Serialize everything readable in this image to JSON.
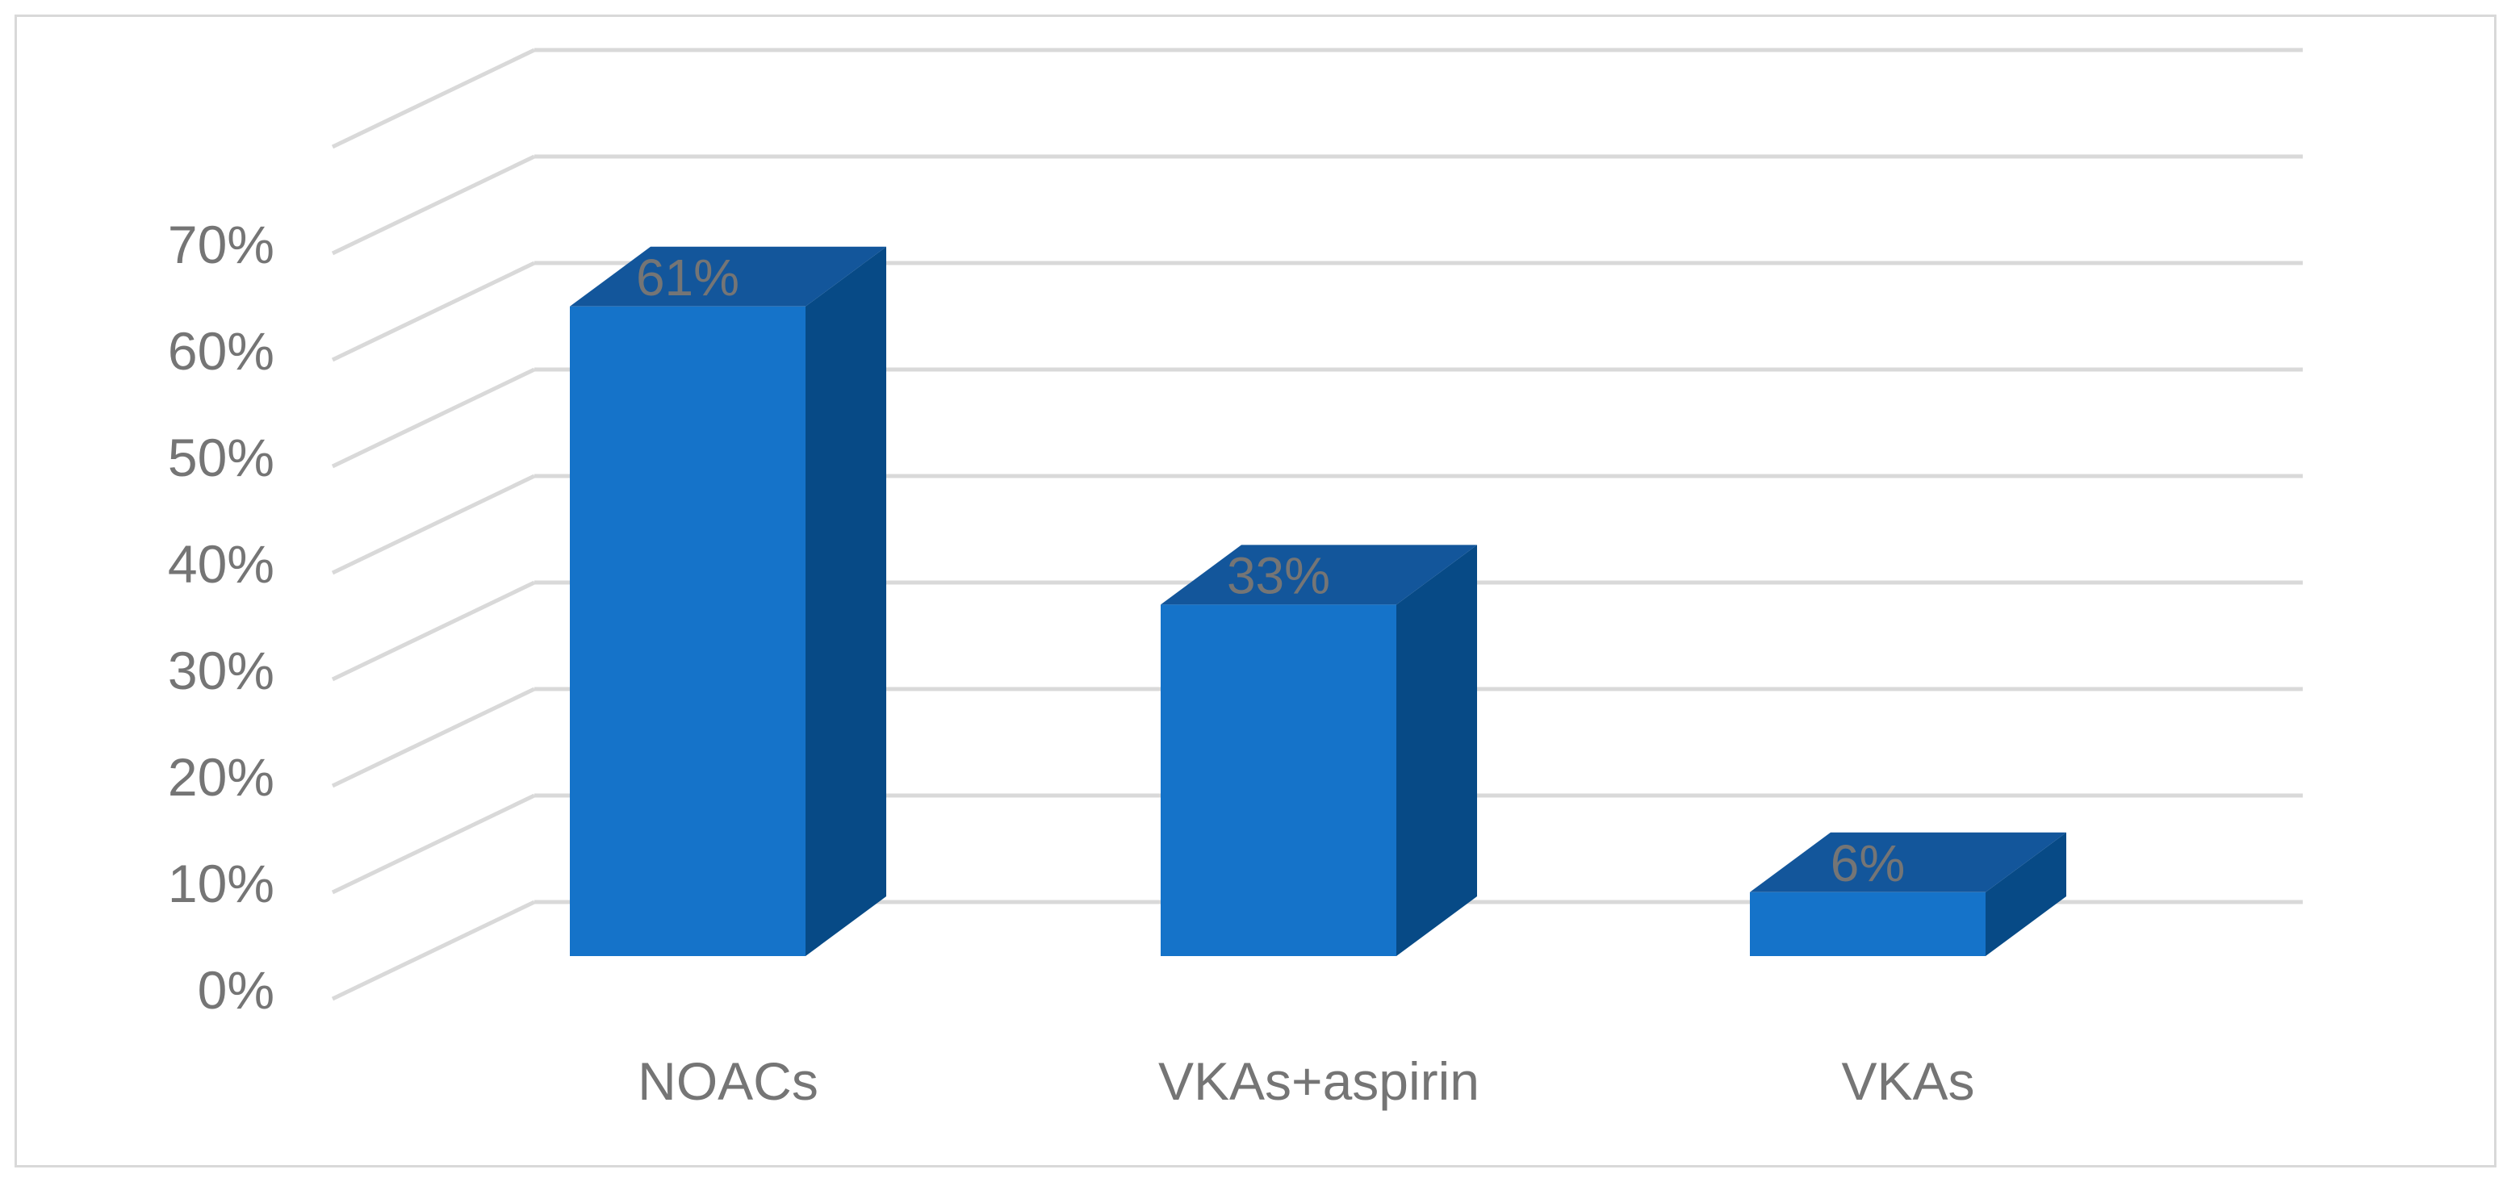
{
  "chart_data": {
    "type": "bar",
    "style": "3d-column",
    "title": "",
    "xlabel": "",
    "ylabel": "",
    "categories": [
      "NOACs",
      "VKAs+aspirin",
      "VKAs"
    ],
    "values": [
      61,
      33,
      6
    ],
    "data_labels": [
      "61%",
      "33%",
      "6%"
    ],
    "ylim": [
      0,
      70
    ],
    "y_ticks": [
      0,
      10,
      20,
      30,
      40,
      50,
      60,
      70
    ],
    "y_tick_labels": [
      "0%",
      "10%",
      "20%",
      "30%",
      "40%",
      "50%",
      "60%",
      "70%"
    ],
    "grid": true,
    "legend": "none",
    "colors": {
      "bar_front": "#1573c9",
      "bar_side": "#074a86",
      "bar_top": "#13569b",
      "gridline": "#d9d9d9",
      "text": "#757575",
      "frame_border": "#d9d9d9"
    }
  }
}
